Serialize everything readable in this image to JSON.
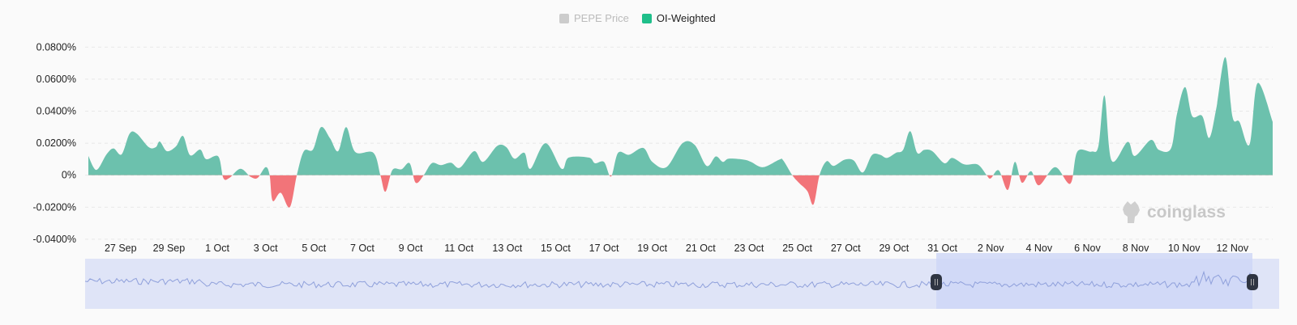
{
  "legend": [
    {
      "label": "PEPE Price",
      "color": "#cccccc",
      "active": false
    },
    {
      "label": "OI-Weighted",
      "color": "#1fbf8a",
      "active": true
    }
  ],
  "watermark": {
    "text": "coinglass",
    "icon": "coinglass-logo-icon"
  },
  "colors": {
    "positive": "#6cc1ad",
    "negative": "#f27479",
    "navigator_fill": "#dfe4f7",
    "navigator_selected": "#cdd6f6",
    "navigator_line": "#8fa0db"
  },
  "chart_data": {
    "type": "area",
    "title": "",
    "xlabel": "",
    "ylabel": "",
    "ylim": [
      -0.04,
      0.08
    ],
    "y_unit": "%",
    "y_ticks": [
      "0.0800%",
      "0.0600%",
      "0.0400%",
      "0.0200%",
      "0%",
      "-0.0200%",
      "-0.0400%"
    ],
    "x_ticks": [
      "27 Sep",
      "29 Sep",
      "1 Oct",
      "3 Oct",
      "5 Oct",
      "7 Oct",
      "9 Oct",
      "11 Oct",
      "13 Oct",
      "15 Oct",
      "17 Oct",
      "19 Oct",
      "21 Oct",
      "23 Oct",
      "25 Oct",
      "27 Oct",
      "29 Oct",
      "31 Oct",
      "2 Nov",
      "4 Nov",
      "6 Nov",
      "8 Nov",
      "10 Nov",
      "12 Nov"
    ],
    "xlim": [
      "25 Sep 16:00",
      "13 Nov 16:00"
    ],
    "grid": true,
    "legend_position": "top-center",
    "series": [
      {
        "name": "OI-Weighted",
        "points": [
          [
            "25 Sep 16:00",
            0.012
          ],
          [
            "26 Sep 00:00",
            0.0033
          ],
          [
            "26 Sep 10:00",
            0.013
          ],
          [
            "26 Sep 17:00",
            0.0167
          ],
          [
            "27 Sep 01:00",
            0.013
          ],
          [
            "27 Sep 09:00",
            0.026
          ],
          [
            "27 Sep 16:00",
            0.026
          ],
          [
            "28 Sep 04:00",
            0.0175
          ],
          [
            "28 Sep 11:00",
            0.0175
          ],
          [
            "28 Sep 15:00",
            0.021
          ],
          [
            "28 Sep 22:00",
            0.015
          ],
          [
            "29 Sep 07:00",
            0.018
          ],
          [
            "29 Sep 14:00",
            0.0245
          ],
          [
            "29 Sep 21:00",
            0.0125
          ],
          [
            "30 Sep 07:00",
            0.016
          ],
          [
            "30 Sep 13:00",
            0.01
          ],
          [
            "1 Oct 01:00",
            0.0117
          ],
          [
            "1 Oct 06:00",
            -0.0017
          ],
          [
            "1 Oct 12:00",
            -0.0017
          ],
          [
            "1 Oct 23:00",
            0.004
          ],
          [
            "2 Oct 09:00",
            -0.001
          ],
          [
            "2 Oct 16:00",
            -0.0017
          ],
          [
            "3 Oct 00:00",
            0.005
          ],
          [
            "3 Oct 04:00",
            0
          ],
          [
            "3 Oct 07:00",
            -0.016
          ],
          [
            "3 Oct 15:00",
            -0.011
          ],
          [
            "4 Oct 00:00",
            -0.02
          ],
          [
            "4 Oct 07:00",
            0
          ],
          [
            "4 Oct 14:00",
            0.015
          ],
          [
            "4 Oct 23:00",
            0.016
          ],
          [
            "5 Oct 07:00",
            0.03
          ],
          [
            "5 Oct 16:00",
            0.023
          ],
          [
            "6 Oct 00:00",
            0.015
          ],
          [
            "6 Oct 08:00",
            0.03
          ],
          [
            "6 Oct 17:00",
            0.0145
          ],
          [
            "7 Oct 11:00",
            0.014
          ],
          [
            "7 Oct 18:00",
            0
          ],
          [
            "7 Oct 23:00",
            -0.0103
          ],
          [
            "8 Oct 06:00",
            0.0033
          ],
          [
            "8 Oct 15:00",
            0.0037
          ],
          [
            "8 Oct 23:00",
            0.0075
          ],
          [
            "9 Oct 05:00",
            -0.0047
          ],
          [
            "9 Oct 13:00",
            0
          ],
          [
            "9 Oct 21:00",
            0.0075
          ],
          [
            "10 Oct 06:00",
            0.0063
          ],
          [
            "10 Oct 16:00",
            0.0078
          ],
          [
            "11 Oct 01:00",
            0.0047
          ],
          [
            "11 Oct 15:00",
            0.015
          ],
          [
            "12 Oct 00:00",
            0.0083
          ],
          [
            "12 Oct 14:00",
            0.0183
          ],
          [
            "12 Oct 23:00",
            0.0175
          ],
          [
            "13 Oct 07:00",
            0.0103
          ],
          [
            "13 Oct 17:00",
            0.014
          ],
          [
            "13 Oct 23:00",
            0.004
          ],
          [
            "14 Oct 14:00",
            0.02
          ],
          [
            "15 Oct 06:00",
            0.004
          ],
          [
            "15 Oct 13:00",
            0.011
          ],
          [
            "16 Oct 09:00",
            0.011
          ],
          [
            "16 Oct 15:00",
            0.0075
          ],
          [
            "17 Oct 00:00",
            0.0083
          ],
          [
            "17 Oct 07:00",
            -0.0008
          ],
          [
            "17 Oct 14:00",
            0.014
          ],
          [
            "18 Oct 01:00",
            0.0128
          ],
          [
            "18 Oct 15:00",
            0.017
          ],
          [
            "19 Oct 00:00",
            0.0083
          ],
          [
            "19 Oct 14:00",
            0.005
          ],
          [
            "20 Oct 06:00",
            0.02
          ],
          [
            "20 Oct 18:00",
            0.019
          ],
          [
            "21 Oct 06:00",
            0.0058
          ],
          [
            "21 Oct 15:00",
            0.0117
          ],
          [
            "21 Oct 22:00",
            0.0083
          ],
          [
            "22 Oct 04:00",
            0.0103
          ],
          [
            "22 Oct 19:00",
            0.0097
          ],
          [
            "23 Oct 02:00",
            0.0083
          ],
          [
            "23 Oct 14:00",
            0.005
          ],
          [
            "24 Oct 06:00",
            0.0097
          ],
          [
            "24 Oct 10:00",
            0.0092
          ],
          [
            "24 Oct 19:00",
            0
          ],
          [
            "25 Oct 02:00",
            -0.005
          ],
          [
            "25 Oct 10:00",
            -0.01
          ],
          [
            "25 Oct 16:00",
            -0.0183
          ],
          [
            "25 Oct 22:00",
            0
          ],
          [
            "26 Oct 05:00",
            0.0087
          ],
          [
            "26 Oct 12:00",
            0.0058
          ],
          [
            "26 Oct 23:00",
            0.0097
          ],
          [
            "27 Oct 08:00",
            0.0092
          ],
          [
            "27 Oct 17:00",
            0.0017
          ],
          [
            "28 Oct 02:00",
            0.0125
          ],
          [
            "28 Oct 10:00",
            0.0128
          ],
          [
            "28 Oct 17:00",
            0.0108
          ],
          [
            "29 Oct 02:00",
            0.014
          ],
          [
            "29 Oct 09:00",
            0.0158
          ],
          [
            "29 Oct 16:00",
            0.0275
          ],
          [
            "29 Oct 23:00",
            0.014
          ],
          [
            "30 Oct 06:00",
            0.0158
          ],
          [
            "30 Oct 14:00",
            0.015
          ],
          [
            "31 Oct 02:00",
            0.0075
          ],
          [
            "31 Oct 10:00",
            0.0108
          ],
          [
            "31 Oct 22:00",
            0.0067
          ],
          [
            "1 Nov 11:00",
            0.0067
          ],
          [
            "1 Nov 20:00",
            0
          ],
          [
            "2 Nov 00:00",
            -0.002
          ],
          [
            "2 Nov 08:00",
            0.003
          ],
          [
            "2 Nov 17:00",
            -0.0092
          ],
          [
            "3 Nov 00:00",
            0.0083
          ],
          [
            "3 Nov 07:00",
            -0.0047
          ],
          [
            "3 Nov 16:00",
            0.0025
          ],
          [
            "4 Nov 00:00",
            -0.0063
          ],
          [
            "4 Nov 16:00",
            0.005
          ],
          [
            "5 Nov 07:00",
            -0.0053
          ],
          [
            "5 Nov 14:00",
            0.0147
          ],
          [
            "6 Nov 04:00",
            0.0147
          ],
          [
            "6 Nov 11:00",
            0.0183
          ],
          [
            "6 Nov 17:00",
            0.0497
          ],
          [
            "7 Nov 00:00",
            0.0092
          ],
          [
            "7 Nov 16:00",
            0.0208
          ],
          [
            "7 Nov 23:00",
            0.012
          ],
          [
            "8 Nov 15:00",
            0.022
          ],
          [
            "8 Nov 23:00",
            0.0158
          ],
          [
            "9 Nov 11:00",
            0.0167
          ],
          [
            "9 Nov 17:00",
            0.0383
          ],
          [
            "10 Nov 01:00",
            0.055
          ],
          [
            "10 Nov 08:00",
            0.037
          ],
          [
            "10 Nov 18:00",
            0.037
          ],
          [
            "11 Nov 01:00",
            0.0233
          ],
          [
            "11 Nov 08:00",
            0.0417
          ],
          [
            "11 Nov 17:00",
            0.0737
          ],
          [
            "12 Nov 00:00",
            0.0367
          ],
          [
            "12 Nov 07:00",
            0.0333
          ],
          [
            "12 Nov 17:00",
            0.0192
          ],
          [
            "13 Nov 01:00",
            0.0575
          ],
          [
            "13 Nov 16:00",
            0.0333
          ]
        ]
      }
    ]
  }
}
